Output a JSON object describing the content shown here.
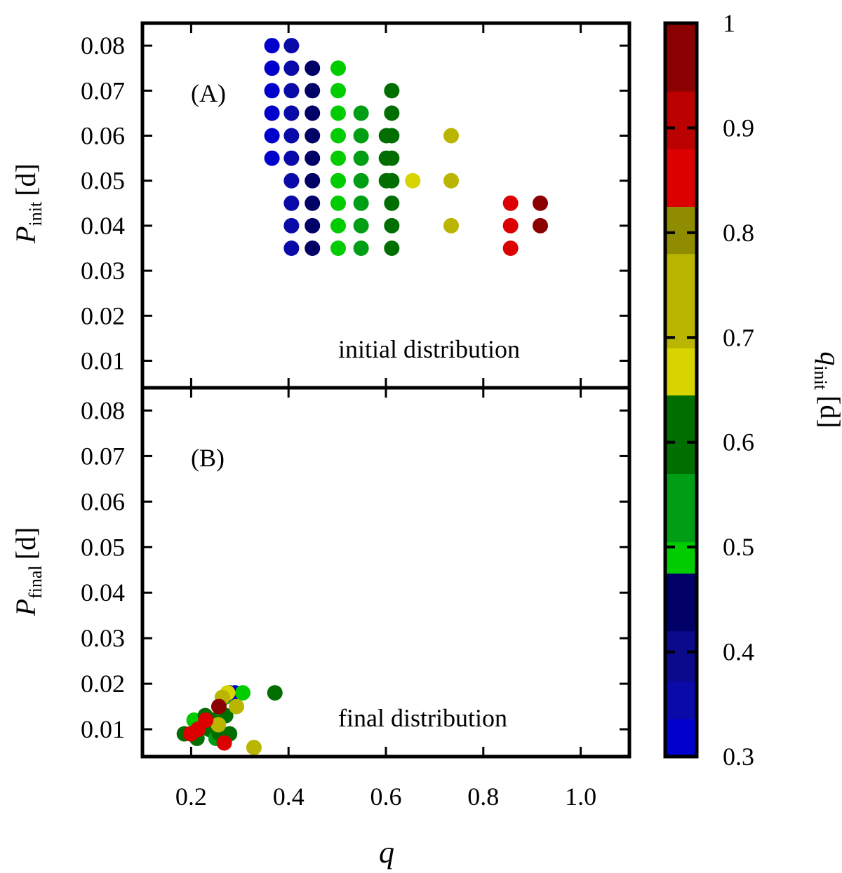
{
  "chart_data": [
    {
      "panel": "A",
      "type": "scatter",
      "panel_label": "(A)",
      "annotation": "initial distribution",
      "ylabel_main": "P",
      "ylabel_sub": "init",
      "ylabel_unit": "[d]",
      "xlim": [
        0.1,
        1.1
      ],
      "ylim": [
        0.004,
        0.085
      ],
      "yticks": [
        0.01,
        0.02,
        0.03,
        0.04,
        0.05,
        0.06,
        0.07,
        0.08
      ],
      "ytick_labels": [
        "0.01",
        "0.02",
        "0.03",
        "0.04",
        "0.05",
        "0.06",
        "0.07",
        "0.08"
      ],
      "points": [
        {
          "q": 0.366,
          "p": 0.08,
          "c": 0.33
        },
        {
          "q": 0.406,
          "p": 0.08,
          "c": 0.35
        },
        {
          "q": 0.366,
          "p": 0.075,
          "c": 0.33
        },
        {
          "q": 0.406,
          "p": 0.075,
          "c": 0.37
        },
        {
          "q": 0.449,
          "p": 0.075,
          "c": 0.42
        },
        {
          "q": 0.502,
          "p": 0.075,
          "c": 0.5
        },
        {
          "q": 0.366,
          "p": 0.07,
          "c": 0.33
        },
        {
          "q": 0.406,
          "p": 0.07,
          "c": 0.37
        },
        {
          "q": 0.449,
          "p": 0.07,
          "c": 0.42
        },
        {
          "q": 0.502,
          "p": 0.07,
          "c": 0.5
        },
        {
          "q": 0.612,
          "p": 0.07,
          "c": 0.62
        },
        {
          "q": 0.366,
          "p": 0.065,
          "c": 0.33
        },
        {
          "q": 0.406,
          "p": 0.065,
          "c": 0.37
        },
        {
          "q": 0.449,
          "p": 0.065,
          "c": 0.42
        },
        {
          "q": 0.502,
          "p": 0.065,
          "c": 0.5
        },
        {
          "q": 0.549,
          "p": 0.065,
          "c": 0.55
        },
        {
          "q": 0.612,
          "p": 0.065,
          "c": 0.62
        },
        {
          "q": 0.366,
          "p": 0.06,
          "c": 0.33
        },
        {
          "q": 0.406,
          "p": 0.06,
          "c": 0.37
        },
        {
          "q": 0.449,
          "p": 0.06,
          "c": 0.42
        },
        {
          "q": 0.502,
          "p": 0.06,
          "c": 0.5
        },
        {
          "q": 0.549,
          "p": 0.06,
          "c": 0.55
        },
        {
          "q": 0.601,
          "p": 0.06,
          "c": 0.6
        },
        {
          "q": 0.612,
          "p": 0.06,
          "c": 0.62
        },
        {
          "q": 0.734,
          "p": 0.06,
          "c": 0.74
        },
        {
          "q": 0.366,
          "p": 0.055,
          "c": 0.33
        },
        {
          "q": 0.406,
          "p": 0.055,
          "c": 0.37
        },
        {
          "q": 0.449,
          "p": 0.055,
          "c": 0.42
        },
        {
          "q": 0.502,
          "p": 0.055,
          "c": 0.5
        },
        {
          "q": 0.549,
          "p": 0.055,
          "c": 0.55
        },
        {
          "q": 0.601,
          "p": 0.055,
          "c": 0.6
        },
        {
          "q": 0.612,
          "p": 0.055,
          "c": 0.62
        },
        {
          "q": 0.406,
          "p": 0.05,
          "c": 0.37
        },
        {
          "q": 0.449,
          "p": 0.05,
          "c": 0.42
        },
        {
          "q": 0.502,
          "p": 0.05,
          "c": 0.5
        },
        {
          "q": 0.549,
          "p": 0.05,
          "c": 0.55
        },
        {
          "q": 0.601,
          "p": 0.05,
          "c": 0.6
        },
        {
          "q": 0.612,
          "p": 0.05,
          "c": 0.62
        },
        {
          "q": 0.655,
          "p": 0.05,
          "c": 0.66
        },
        {
          "q": 0.734,
          "p": 0.05,
          "c": 0.74
        },
        {
          "q": 0.406,
          "p": 0.045,
          "c": 0.37
        },
        {
          "q": 0.449,
          "p": 0.045,
          "c": 0.42
        },
        {
          "q": 0.502,
          "p": 0.045,
          "c": 0.5
        },
        {
          "q": 0.549,
          "p": 0.045,
          "c": 0.55
        },
        {
          "q": 0.612,
          "p": 0.045,
          "c": 0.62
        },
        {
          "q": 0.856,
          "p": 0.045,
          "c": 0.86
        },
        {
          "q": 0.917,
          "p": 0.045,
          "c": 0.95
        },
        {
          "q": 0.406,
          "p": 0.04,
          "c": 0.37
        },
        {
          "q": 0.449,
          "p": 0.04,
          "c": 0.42
        },
        {
          "q": 0.502,
          "p": 0.04,
          "c": 0.5
        },
        {
          "q": 0.549,
          "p": 0.04,
          "c": 0.55
        },
        {
          "q": 0.612,
          "p": 0.04,
          "c": 0.62
        },
        {
          "q": 0.734,
          "p": 0.04,
          "c": 0.74
        },
        {
          "q": 0.856,
          "p": 0.04,
          "c": 0.86
        },
        {
          "q": 0.917,
          "p": 0.04,
          "c": 0.95
        },
        {
          "q": 0.406,
          "p": 0.035,
          "c": 0.37
        },
        {
          "q": 0.449,
          "p": 0.035,
          "c": 0.42
        },
        {
          "q": 0.502,
          "p": 0.035,
          "c": 0.5
        },
        {
          "q": 0.549,
          "p": 0.035,
          "c": 0.55
        },
        {
          "q": 0.612,
          "p": 0.035,
          "c": 0.62
        },
        {
          "q": 0.856,
          "p": 0.035,
          "c": 0.86
        }
      ]
    },
    {
      "panel": "B",
      "type": "scatter",
      "panel_label": "(B)",
      "annotation": "final distribution",
      "ylabel_main": "P",
      "ylabel_sub": "final",
      "ylabel_unit": "[d]",
      "xlabel": "q",
      "xlim": [
        0.1,
        1.1
      ],
      "ylim": [
        0.004,
        0.085
      ],
      "xticks": [
        0.2,
        0.4,
        0.6,
        0.8,
        1.0
      ],
      "xtick_labels": [
        "0.2",
        "0.4",
        "0.6",
        "0.8",
        "1.0"
      ],
      "yticks": [
        0.01,
        0.02,
        0.03,
        0.04,
        0.05,
        0.06,
        0.07,
        0.08
      ],
      "ytick_labels": [
        "0.01",
        "0.02",
        "0.03",
        "0.04",
        "0.05",
        "0.06",
        "0.07",
        "0.08"
      ],
      "points": [
        {
          "q": 0.186,
          "p": 0.009,
          "c": 0.62
        },
        {
          "q": 0.203,
          "p": 0.009,
          "c": 0.42
        },
        {
          "q": 0.212,
          "p": 0.008,
          "c": 0.62
        },
        {
          "q": 0.206,
          "p": 0.012,
          "c": 0.5
        },
        {
          "q": 0.229,
          "p": 0.013,
          "c": 0.62
        },
        {
          "q": 0.237,
          "p": 0.01,
          "c": 0.6
        },
        {
          "q": 0.251,
          "p": 0.008,
          "c": 0.55
        },
        {
          "q": 0.244,
          "p": 0.012,
          "c": 0.62
        },
        {
          "q": 0.258,
          "p": 0.009,
          "c": 0.62
        },
        {
          "q": 0.279,
          "p": 0.009,
          "c": 0.62
        },
        {
          "q": 0.271,
          "p": 0.013,
          "c": 0.62
        },
        {
          "q": 0.268,
          "p": 0.017,
          "c": 0.55
        },
        {
          "q": 0.279,
          "p": 0.018,
          "c": 0.37
        },
        {
          "q": 0.29,
          "p": 0.018,
          "c": 0.33
        },
        {
          "q": 0.306,
          "p": 0.018,
          "c": 0.5
        },
        {
          "q": 0.275,
          "p": 0.018,
          "c": 0.66
        },
        {
          "q": 0.264,
          "p": 0.017,
          "c": 0.74
        },
        {
          "q": 0.293,
          "p": 0.015,
          "c": 0.74
        },
        {
          "q": 0.256,
          "p": 0.011,
          "c": 0.74
        },
        {
          "q": 0.329,
          "p": 0.006,
          "c": 0.74
        },
        {
          "q": 0.372,
          "p": 0.018,
          "c": 0.62
        },
        {
          "q": 0.199,
          "p": 0.009,
          "c": 0.86
        },
        {
          "q": 0.214,
          "p": 0.01,
          "c": 0.86
        },
        {
          "q": 0.23,
          "p": 0.012,
          "c": 0.86
        },
        {
          "q": 0.257,
          "p": 0.015,
          "c": 0.95
        },
        {
          "q": 0.268,
          "p": 0.007,
          "c": 0.86
        }
      ]
    }
  ],
  "colorbar": {
    "label_main": "q",
    "label_sub": "init",
    "label_unit": "[d]",
    "range": [
      0.3,
      1.0
    ],
    "ticks": [
      0.3,
      0.4,
      0.5,
      0.6,
      0.7,
      0.8,
      0.9,
      1.0
    ],
    "tick_labels": [
      "0.3",
      "0.4",
      "0.5",
      "0.6",
      "0.7",
      "0.8",
      "0.9",
      "1"
    ],
    "bands": [
      {
        "from": 0.3,
        "to": 0.336,
        "color": "#0000cd"
      },
      {
        "from": 0.336,
        "to": 0.372,
        "color": "#0a0aa8"
      },
      {
        "from": 0.372,
        "to": 0.42,
        "color": "#0a0a8a"
      },
      {
        "from": 0.42,
        "to": 0.475,
        "color": "#000066"
      },
      {
        "from": 0.475,
        "to": 0.505,
        "color": "#00cc00"
      },
      {
        "from": 0.505,
        "to": 0.57,
        "color": "#009e14"
      },
      {
        "from": 0.57,
        "to": 0.645,
        "color": "#006e00"
      },
      {
        "from": 0.645,
        "to": 0.69,
        "color": "#d7d400"
      },
      {
        "from": 0.69,
        "to": 0.78,
        "color": "#b9b500"
      },
      {
        "from": 0.78,
        "to": 0.825,
        "color": "#8f8c00"
      },
      {
        "from": 0.825,
        "to": 0.88,
        "color": "#dd0000"
      },
      {
        "from": 0.88,
        "to": 0.935,
        "color": "#bb0000"
      },
      {
        "from": 0.935,
        "to": 1.0,
        "color": "#8b0000"
      }
    ]
  }
}
